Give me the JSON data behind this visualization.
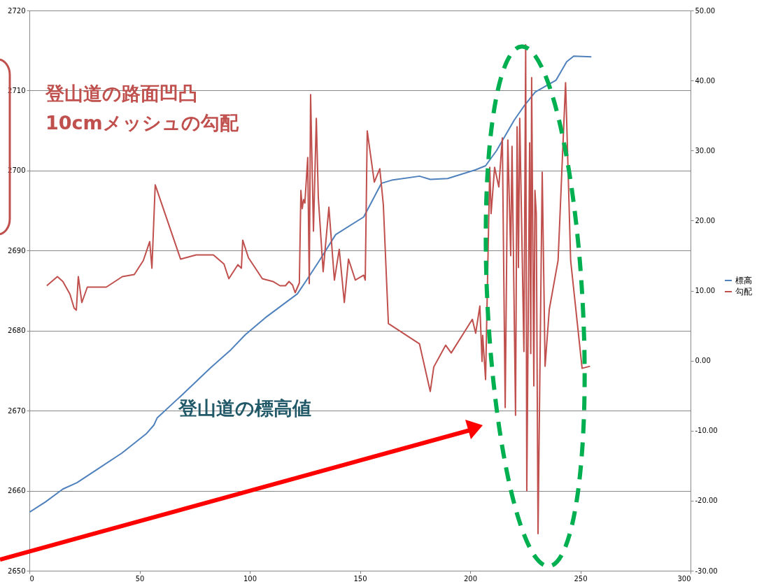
{
  "chart_data": {
    "type": "line",
    "legend": "right",
    "grid": "y",
    "xlim": [
      0,
      300
    ],
    "xticks": [
      0,
      50,
      100,
      150,
      200,
      250,
      300
    ],
    "ylim": [
      2650,
      2720
    ],
    "yticks": [
      2650,
      2660,
      2670,
      2680,
      2690,
      2700,
      2710,
      2720
    ],
    "y2lim": [
      -30,
      50
    ],
    "y2ticks": [
      {
        "value": -30,
        "label": "-30.00"
      },
      {
        "value": -20,
        "label": "-20.00"
      },
      {
        "value": -10,
        "label": "-10.00"
      },
      {
        "value": 0,
        "label": "0.00"
      },
      {
        "value": 10,
        "label": "10.00"
      },
      {
        "value": 20,
        "label": "20.00"
      },
      {
        "value": 30,
        "label": "30.00"
      },
      {
        "value": 40,
        "label": "40.00"
      },
      {
        "value": 50,
        "label": "50.00"
      }
    ],
    "annotations": [
      "登山道の路面凹凸\n10cmメッシュの勾配",
      "登山道の標高値"
    ],
    "series": [
      {
        "name": "標高",
        "color": "#4f81bd",
        "x": [
          0,
          7.3,
          15.2,
          21.6,
          31,
          42,
          53,
          56.5,
          58,
          69,
          82,
          91.4,
          98,
          107,
          121.6,
          126,
          131,
          139,
          151.7,
          159.7,
          164.4,
          177,
          181.9,
          189.8,
          202.5,
          207,
          212,
          220,
          224.8,
          229.5,
          239,
          243.8,
          247,
          255
        ],
        "values": [
          2657.3,
          2658.6,
          2660.2,
          2661,
          2662.7,
          2664.7,
          2667.1,
          2668.2,
          2669.1,
          2671.9,
          2675.3,
          2677.6,
          2679.5,
          2681.6,
          2684.6,
          2686.4,
          2688.5,
          2692,
          2694.2,
          2698.4,
          2698.8,
          2699.3,
          2698.9,
          2699,
          2700.1,
          2700.6,
          2702.5,
          2706.3,
          2708.2,
          2709.8,
          2711.3,
          2713.6,
          2714.3,
          2714.2
        ]
      },
      {
        "name": "勾配",
        "color": "#c0504d",
        "axis": "y2",
        "x": [
          7.9,
          12.7,
          15.2,
          18.4,
          20.3,
          21.3,
          22.2,
          23.8,
          26.3,
          34.9,
          42.2,
          47.6,
          51.7,
          54.6,
          55.6,
          57.1,
          68.6,
          75.6,
          83.5,
          88.3,
          90.5,
          94.6,
          96.2,
          96.8,
          99.4,
          105.7,
          110.5,
          113.7,
          116.2,
          117.8,
          119.4,
          120.6,
          122.5,
          123.2,
          123.8,
          124.4,
          125,
          126.3,
          127,
          127.6,
          128.9,
          130.2,
          131.1,
          133.3,
          135.9,
          138.4,
          140.6,
          142.9,
          144.8,
          147.9,
          151.7,
          152.4,
          153.3,
          156.5,
          159,
          160.6,
          162.9,
          177,
          181.9,
          183.5,
          188.9,
          191.4,
          201,
          202.5,
          204.4,
          205.4,
          205.7,
          207,
          208.9,
          209.5,
          211.1,
          213,
          214.6,
          215.9,
          217.1,
          218.4,
          219,
          220.6,
          221.3,
          221.9,
          222.5,
          224.4,
          225.2,
          225.7,
          227,
          227.5,
          227.9,
          228.9,
          229.4,
          230,
          230.8,
          232.7,
          234,
          235.9,
          239.9,
          243.3,
          245.6,
          250.8,
          254.4
        ],
        "values": [
          10.7,
          12,
          11.3,
          9.5,
          7.5,
          7.2,
          12,
          8.3,
          10.5,
          10.5,
          12,
          12.3,
          14.3,
          17,
          13.2,
          25.1,
          14.5,
          15.1,
          15.1,
          13.8,
          11.7,
          13.7,
          13.2,
          17.2,
          14.7,
          11.7,
          11.3,
          10.7,
          10.7,
          11.3,
          10.8,
          9.7,
          11.1,
          24.3,
          21.7,
          23,
          22.5,
          29,
          11,
          38,
          18.5,
          34.6,
          23.3,
          12.7,
          21.9,
          11.5,
          15.9,
          8.3,
          14.5,
          11.5,
          12.2,
          11.5,
          32.8,
          25.5,
          27.4,
          22.3,
          5.3,
          2.4,
          -4.4,
          -0.9,
          2.2,
          1.1,
          5.9,
          3.9,
          7.8,
          -0.1,
          3.6,
          -2.7,
          27.6,
          21,
          27.6,
          24.8,
          31.8,
          -6.7,
          31.5,
          15,
          30.6,
          -7.8,
          33.4,
          13.3,
          34.6,
          1.3,
          45.1,
          -18.6,
          31.1,
          1,
          40.4,
          -3.6,
          24.3,
          21,
          -24.7,
          26.9,
          -0.8,
          7.3,
          14.3,
          39.7,
          14.3,
          -1.1,
          -0.8
        ]
      }
    ]
  }
}
